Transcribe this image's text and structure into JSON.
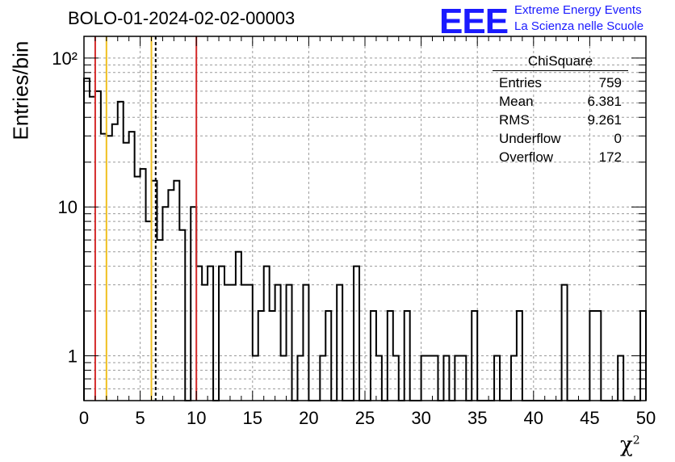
{
  "header": {
    "title": "BOLO-01-2024-02-02-00003",
    "logo_mark": "EEE",
    "logo_line1": "Extreme Energy Events",
    "logo_line2": "La Scienza nelle Scuole"
  },
  "colors": {
    "histogram": "#000000",
    "red_line": "#d42a2a",
    "yellow_line": "#f0c020",
    "logo": "#1a1aff",
    "grid": "#9a9a9a"
  },
  "chart_data": {
    "type": "bar",
    "histogram": true,
    "title": "BOLO-01-2024-02-02-00003",
    "xlabel": "χ²",
    "ylabel": "Entries/bin",
    "xlim": [
      0,
      50
    ],
    "ylim": [
      0.5,
      140
    ],
    "y_scale": "log",
    "grid": true,
    "x_ticks": [
      0,
      5,
      10,
      15,
      20,
      25,
      30,
      35,
      40,
      45,
      50
    ],
    "x_tick_labels": [
      "0",
      "5",
      "10",
      "15",
      "20",
      "25",
      "30",
      "35",
      "40",
      "45",
      "50"
    ],
    "y_ticks": [
      1,
      10,
      100
    ],
    "y_tick_labels": [
      "1",
      "10",
      "10²"
    ],
    "bin_width": 0.5,
    "bin_starts": [
      0,
      0.5,
      1,
      1.5,
      2,
      2.5,
      3,
      3.5,
      4,
      4.5,
      5,
      5.5,
      6,
      6.5,
      7,
      7.5,
      8,
      8.5,
      9,
      9.5,
      10,
      10.5,
      11,
      11.5,
      12,
      12.5,
      13,
      13.5,
      14,
      14.5,
      15,
      15.5,
      16,
      16.5,
      17,
      17.5,
      18,
      18.5,
      19,
      19.5,
      20,
      20.5,
      21,
      21.5,
      22,
      22.5,
      23,
      23.5,
      24,
      24.5,
      25,
      25.5,
      26,
      26.5,
      27,
      27.5,
      28,
      28.5,
      29,
      29.5,
      30,
      30.5,
      31,
      31.5,
      32,
      32.5,
      33,
      33.5,
      34,
      34.5,
      35,
      35.5,
      36,
      36.5,
      37,
      37.5,
      38,
      38.5,
      39,
      39.5,
      40,
      40.5,
      41,
      41.5,
      42,
      42.5,
      43,
      43.5,
      44,
      44.5,
      45,
      45.5,
      46,
      46.5,
      47,
      47.5,
      48,
      48.5,
      49,
      49.5
    ],
    "values": [
      73,
      55,
      60,
      31,
      30,
      36,
      51,
      27,
      32,
      16,
      18,
      8,
      15,
      6,
      10,
      13,
      15,
      7,
      0,
      10,
      4,
      3,
      4,
      0,
      4,
      3,
      3,
      5,
      3,
      3,
      1,
      2,
      4,
      2,
      3,
      1,
      3,
      0,
      1,
      3,
      0,
      0,
      1,
      2,
      0,
      3,
      0,
      0,
      4,
      0,
      0,
      2,
      1,
      0,
      2,
      1,
      0,
      2,
      0,
      0,
      1,
      1,
      1,
      0,
      1,
      0,
      1,
      1,
      0,
      2,
      0,
      0,
      0,
      1,
      0,
      0,
      1,
      2,
      0,
      0,
      0,
      0,
      0,
      0,
      0,
      3,
      0,
      0,
      0,
      0,
      2,
      2,
      0,
      0,
      0,
      1,
      0,
      0,
      0,
      2
    ],
    "vertical_lines": [
      {
        "x": 1,
        "color": "red",
        "style": "solid"
      },
      {
        "x": 2,
        "color": "yellow",
        "style": "solid"
      },
      {
        "x": 6,
        "color": "yellow",
        "style": "solid"
      },
      {
        "x": 6.38,
        "color": "black",
        "style": "dashed"
      },
      {
        "x": 10,
        "color": "red",
        "style": "solid"
      }
    ],
    "stats_box": {
      "name": "ChiSquare",
      "placement": "top-right",
      "rows": [
        {
          "label": "Entries",
          "value": "759"
        },
        {
          "label": "Mean",
          "value": "6.381"
        },
        {
          "label": "RMS",
          "value": "9.261"
        },
        {
          "label": "Underflow",
          "value": "0"
        },
        {
          "label": "Overflow",
          "value": "172"
        }
      ]
    }
  }
}
